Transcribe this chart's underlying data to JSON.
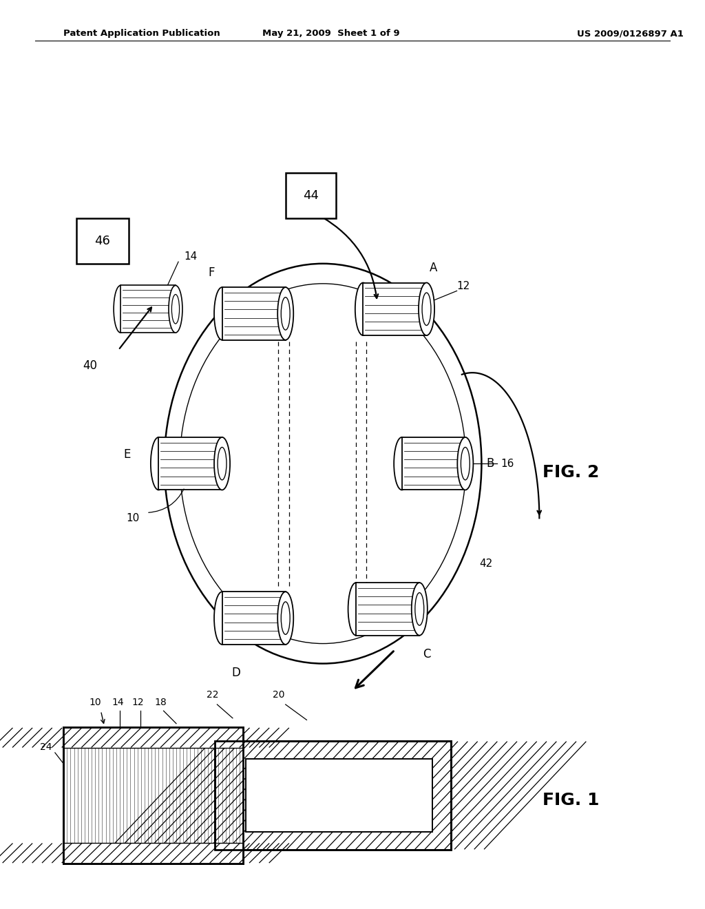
{
  "background_color": "#ffffff",
  "header_left": "Patent Application Publication",
  "header_center": "May 21, 2009  Sheet 1 of 9",
  "header_right": "US 2009/0126897 A1",
  "fig1_label": "FIG. 1",
  "fig2_label": "FIG. 2"
}
